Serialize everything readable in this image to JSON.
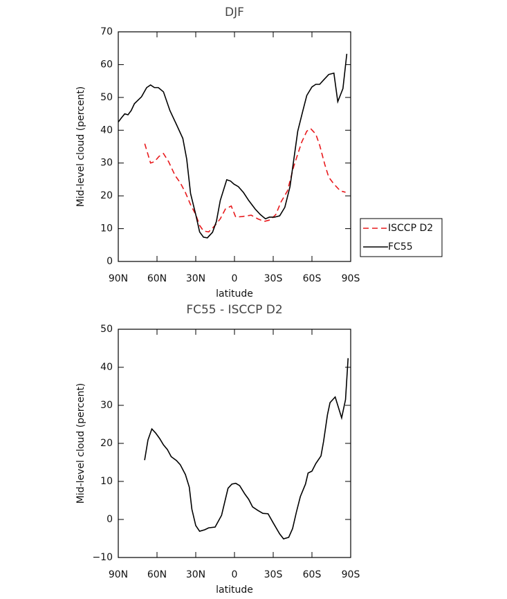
{
  "chart_data": [
    {
      "type": "line",
      "title": "DJF",
      "xlabel": "latitude",
      "ylabel": "Mid-level cloud (percent)",
      "xlim": [
        90,
        -90
      ],
      "ylim": [
        0,
        70
      ],
      "xticks": [
        {
          "value": 90,
          "label": "90N"
        },
        {
          "value": 60,
          "label": "60N"
        },
        {
          "value": 30,
          "label": "30N"
        },
        0,
        {
          "value": -30,
          "label": "30S"
        },
        {
          "value": -60,
          "label": "60S"
        },
        {
          "value": -90,
          "label": "90S"
        }
      ],
      "yticks": [
        0,
        10,
        20,
        30,
        40,
        50,
        60,
        70
      ],
      "legend": "right",
      "series": [
        {
          "name": "ISCCP D2",
          "color": "#e8191c",
          "dash": true,
          "x": [
            69.5,
            65,
            62,
            58.5,
            55,
            51,
            46,
            42,
            38,
            34,
            30,
            27,
            24,
            20,
            15,
            11,
            7,
            2.5,
            -1,
            -6,
            -13,
            -18,
            -23,
            -28,
            -32,
            -36,
            -41,
            -46,
            -52,
            -56,
            -59,
            -63,
            -66,
            -70,
            -73,
            -77,
            -82,
            -86
          ],
          "values": [
            35.9,
            30,
            30.4,
            32,
            32.9,
            30.4,
            26.2,
            24,
            21,
            17.3,
            14.3,
            11,
            9.3,
            9,
            11,
            13,
            16,
            16.9,
            13.5,
            13.7,
            14.1,
            13,
            12.2,
            12.7,
            14.3,
            18.1,
            21.5,
            29.1,
            36.3,
            39.7,
            40.5,
            38.8,
            35.4,
            29.5,
            25.7,
            23.6,
            21.5,
            21.1
          ]
        },
        {
          "name": "FC55",
          "color": "#000000",
          "dash": false,
          "x": [
            90,
            87.5,
            85,
            82.5,
            80,
            77.5,
            72,
            68,
            65,
            62,
            59,
            55,
            50,
            45,
            40,
            37,
            34,
            30,
            27,
            24,
            21,
            17,
            14,
            11,
            6,
            3,
            0.5,
            -3,
            -7,
            -11,
            -16,
            -20,
            -24,
            -27,
            -31,
            -35,
            -39,
            -43,
            -46,
            -49,
            -53,
            -56,
            -60,
            -63,
            -66,
            -69,
            -73,
            -77,
            -80,
            -84,
            -87
          ],
          "values": [
            42.5,
            43.8,
            45,
            44.7,
            46,
            48.1,
            50.2,
            53,
            53.8,
            53,
            53,
            51.7,
            46,
            41.8,
            37.5,
            31.2,
            20.7,
            14.3,
            9,
            7.4,
            7.2,
            8.9,
            12.2,
            18.6,
            24.9,
            24.5,
            23.6,
            22.8,
            21,
            18.6,
            16,
            14.3,
            13,
            13.5,
            13.5,
            13.9,
            16.5,
            22.8,
            31.2,
            39.7,
            46,
            50.6,
            53.2,
            54,
            54,
            55.3,
            57,
            57.4,
            48.7,
            52.7,
            63.3
          ]
        }
      ]
    },
    {
      "type": "line",
      "title": "FC55 - ISCCP D2",
      "xlabel": "latitude",
      "ylabel": "Mid-level cloud (percent)",
      "xlim": [
        90,
        -90
      ],
      "ylim": [
        -10,
        50
      ],
      "xticks": [
        {
          "value": 90,
          "label": "90N"
        },
        {
          "value": 60,
          "label": "60N"
        },
        {
          "value": 30,
          "label": "30N"
        },
        0,
        {
          "value": -30,
          "label": "30S"
        },
        {
          "value": -60,
          "label": "60S"
        },
        {
          "value": -90,
          "label": "90S"
        }
      ],
      "yticks": [
        {
          "value": -10,
          "label": "−10"
        },
        0,
        10,
        20,
        30,
        40,
        50
      ],
      "series": [
        {
          "color": "#000000",
          "dash": false,
          "x": [
            69.6,
            67,
            64,
            61,
            58,
            55,
            52,
            49,
            45,
            42,
            38,
            35,
            33,
            30,
            27,
            23,
            20,
            15,
            10,
            5,
            2,
            -1,
            -4,
            -8,
            -11,
            -14,
            -18,
            -22,
            -26,
            -30,
            -35,
            -38,
            -42,
            -45,
            -48,
            -51,
            -55,
            -57,
            -60,
            -63,
            -67,
            -69,
            -72,
            -74,
            -78,
            -83,
            -86,
            -88
          ],
          "values": [
            15.6,
            20.9,
            23.8,
            22.7,
            21.3,
            19.6,
            18.4,
            16.5,
            15.5,
            14.4,
            11.8,
            8.5,
            2.7,
            -1.6,
            -3.1,
            -2.7,
            -2.2,
            -2,
            1.1,
            8.2,
            9.3,
            9.5,
            8.9,
            6.7,
            5.3,
            3.3,
            2.4,
            1.6,
            1.5,
            -0.9,
            -3.8,
            -5.1,
            -4.7,
            -2.4,
            2,
            6,
            9.3,
            12.2,
            12.7,
            14.7,
            16.7,
            20.5,
            27.5,
            30.7,
            32.2,
            26.7,
            31.5,
            42.4
          ]
        }
      ]
    }
  ]
}
